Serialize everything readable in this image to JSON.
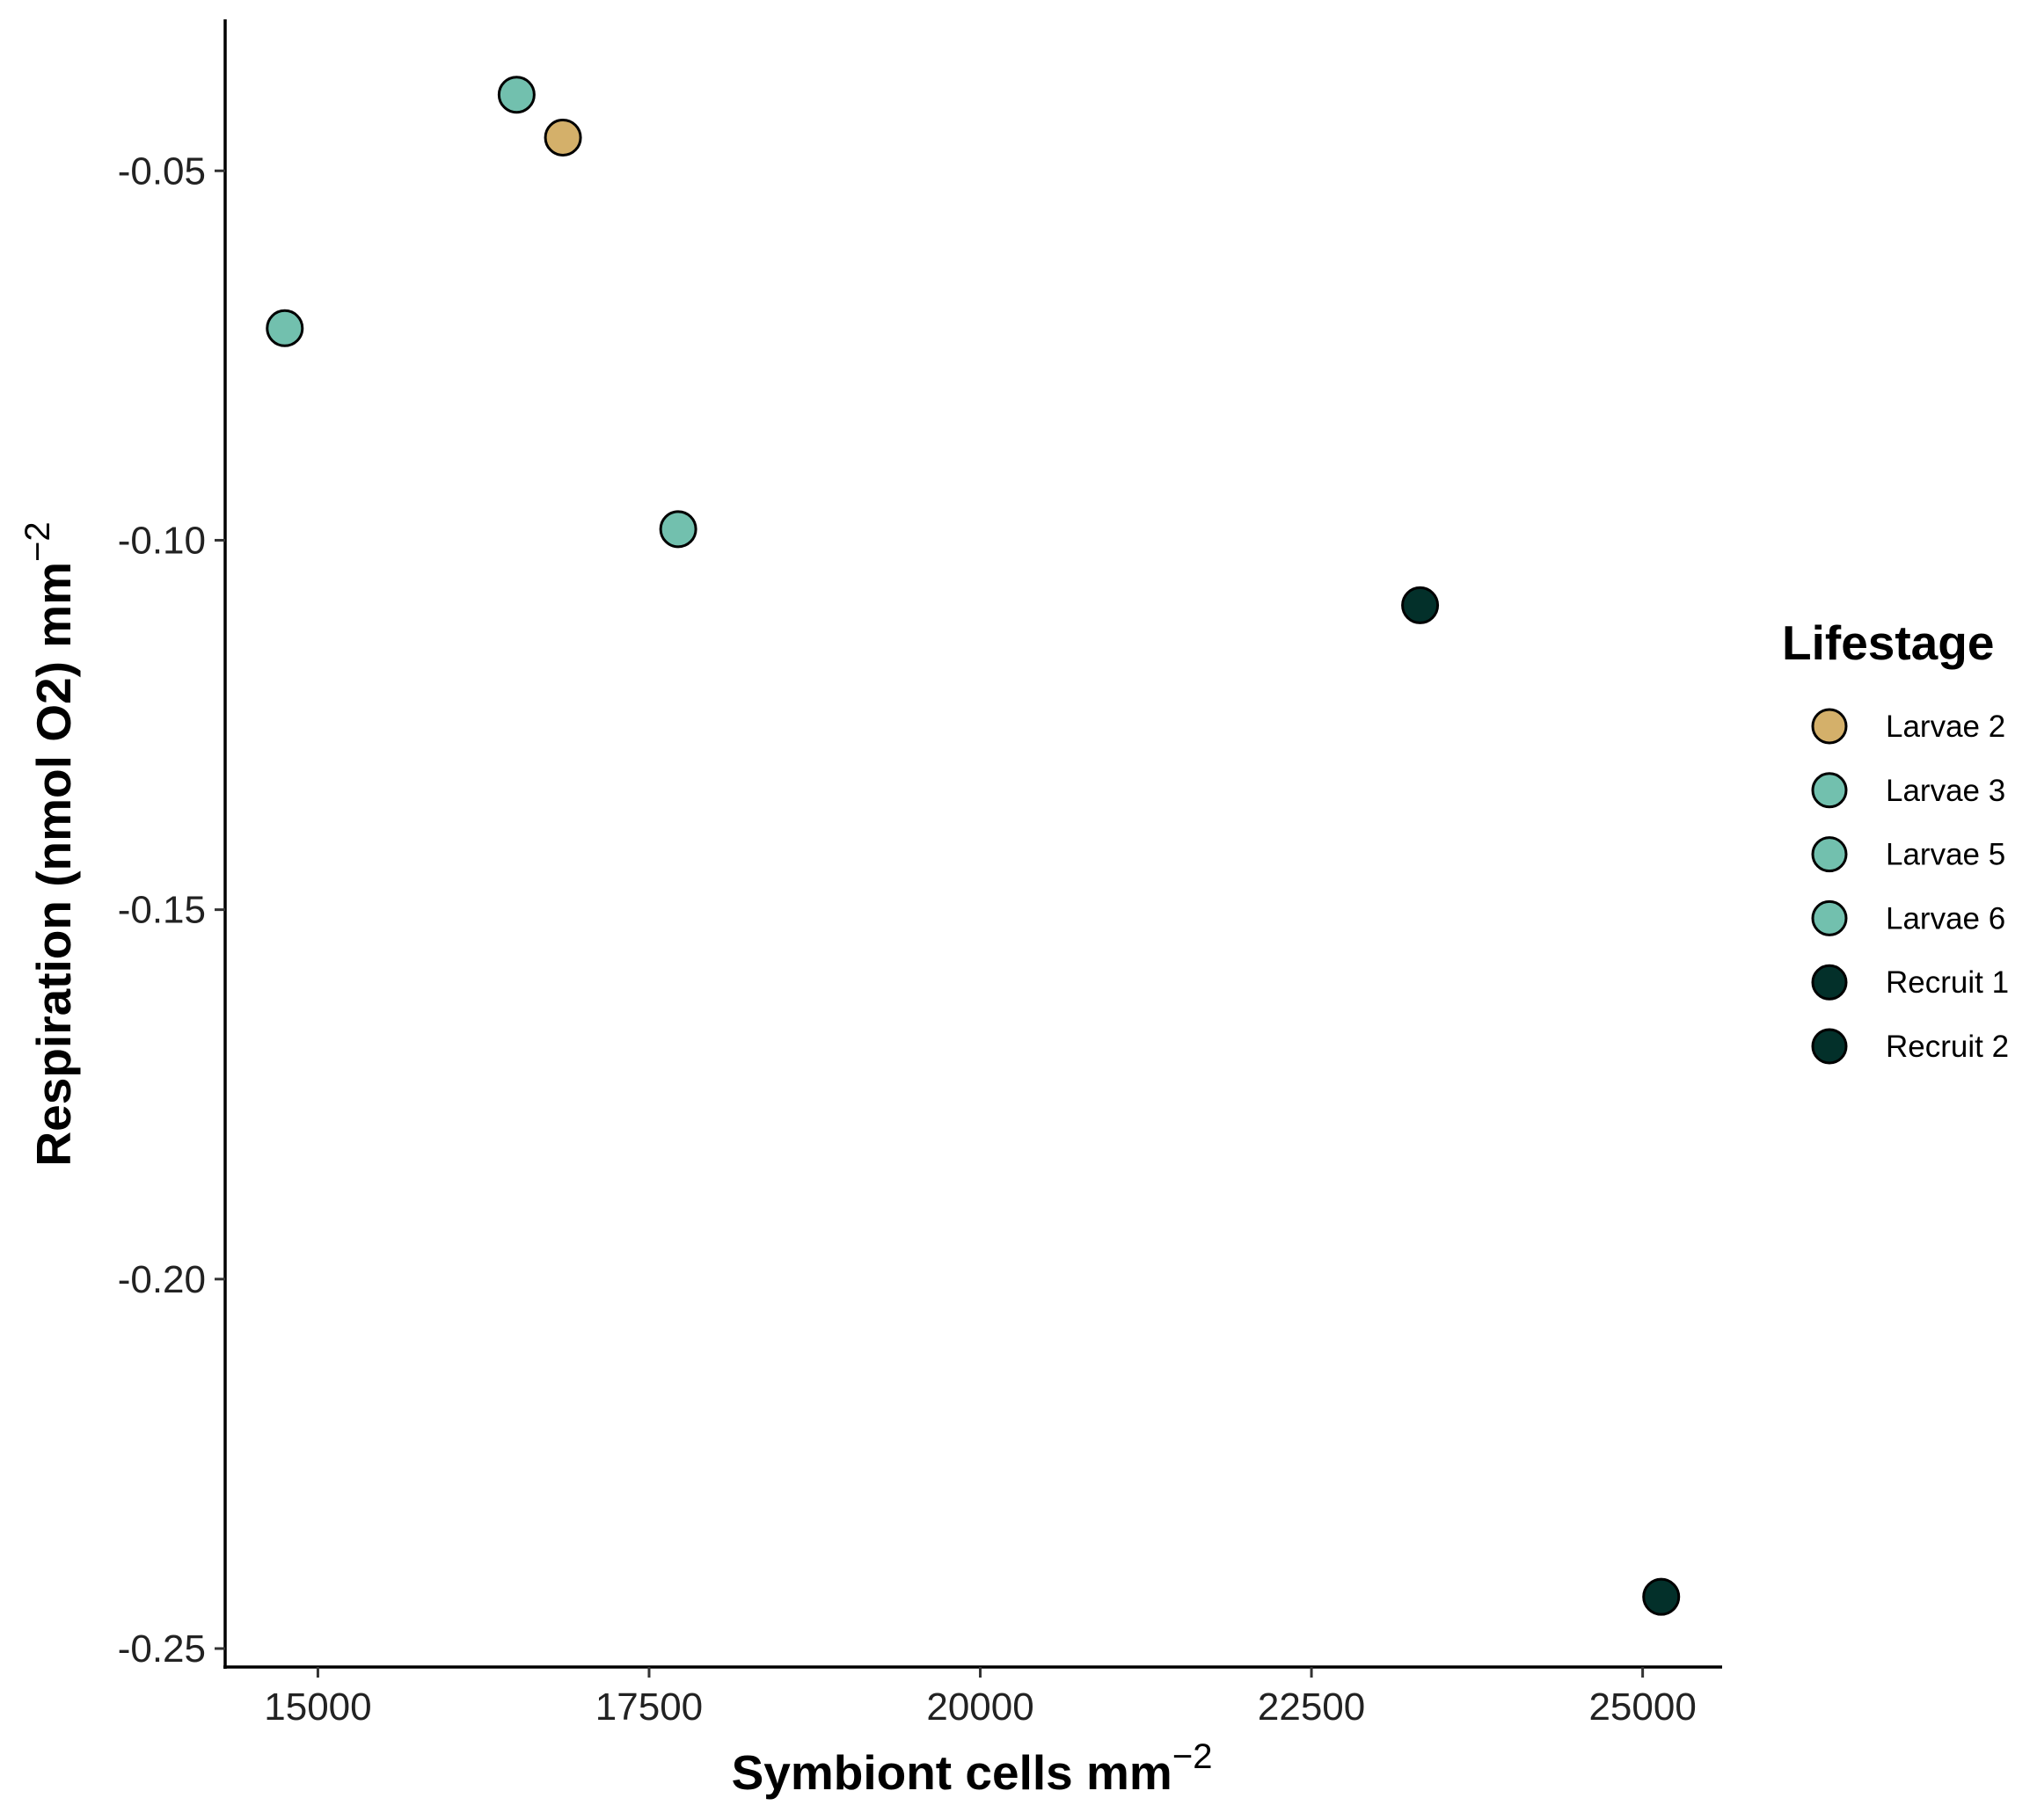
{
  "chart_data": {
    "type": "scatter",
    "xlabel": "Symbiont cells mm",
    "xlabel_superscript": "−2",
    "ylabel": "Respiration (nmol O2) mm",
    "ylabel_superscript": "−2",
    "xlim": [
      14300,
      25600
    ],
    "ylim": [
      -0.2525,
      -0.0295
    ],
    "x_ticks": [
      15000,
      17500,
      20000,
      22500,
      25000
    ],
    "x_tick_labels": [
      "15000",
      "17500",
      "20000",
      "22500",
      "25000"
    ],
    "y_ticks": [
      -0.05,
      -0.1,
      -0.15,
      -0.2,
      -0.25
    ],
    "y_tick_labels": [
      "-0.05",
      "-0.10",
      "-0.15",
      "-0.20",
      "-0.25"
    ],
    "grid": false,
    "legend": {
      "title": "Lifestage",
      "position": "right"
    },
    "series": [
      {
        "name": "Larvae 2",
        "color": "#D4B06A",
        "points": [
          {
            "x": 16850,
            "y": -0.0455
          }
        ]
      },
      {
        "name": "Larvae 3",
        "color": "#72C0AE",
        "points": [
          {
            "x": 16500,
            "y": -0.0397
          }
        ]
      },
      {
        "name": "Larvae 5",
        "color": "#72C0AE",
        "points": [
          {
            "x": 14750,
            "y": -0.0713
          }
        ]
      },
      {
        "name": "Larvae 6",
        "color": "#72C0AE",
        "points": [
          {
            "x": 17720,
            "y": -0.0985
          }
        ]
      },
      {
        "name": "Recruit 1",
        "color": "#03302A",
        "points": [
          {
            "x": 23320,
            "y": -0.1088
          }
        ]
      },
      {
        "name": "Recruit 2",
        "color": "#03302A",
        "points": [
          {
            "x": 25140,
            "y": -0.243
          }
        ]
      }
    ]
  }
}
